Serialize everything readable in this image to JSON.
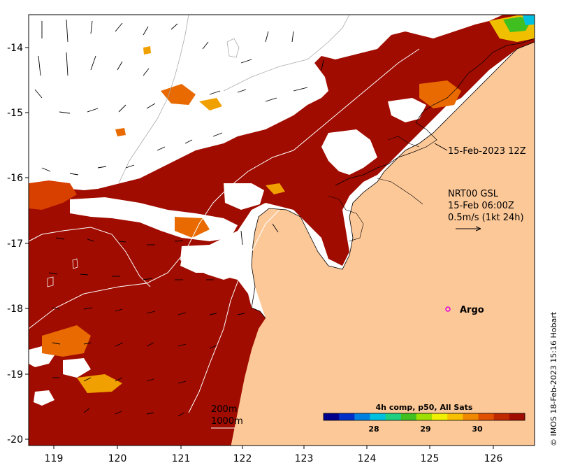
{
  "map": {
    "x_ticks": [
      "119",
      "120",
      "121",
      "122",
      "123",
      "124",
      "125",
      "126"
    ],
    "y_ticks": [
      "-14",
      "-15",
      "-16",
      "-17",
      "-18",
      "-19",
      "-20"
    ],
    "colors": {
      "land": "#fcc898",
      "sst_hot": "#a00c00",
      "sst_warm": "#c83000",
      "sst_mid": "#e86a00",
      "sst_cool": "#f0a000",
      "cloud": "#ffffff"
    }
  },
  "annotations": {
    "date_label": "15-Feb-2023 12Z",
    "wind_title": "NRT00 GSL",
    "wind_time": "15-Feb 06:00Z",
    "wind_scale": "0.5m/s (1kt 24h)",
    "argo_label": "Argo",
    "iso_200": "200m",
    "iso_1000": "1000m"
  },
  "colorbar": {
    "title": "4h comp, p50, All Sats",
    "ticks": [
      "28",
      "29",
      "30"
    ],
    "colors": [
      "#00008c",
      "#0030c8",
      "#0080e0",
      "#00c0e0",
      "#20d080",
      "#40c020",
      "#a0e000",
      "#f0f000",
      "#f8c000",
      "#f08800",
      "#e05000",
      "#c02800",
      "#a00c00"
    ]
  },
  "credit": "© IMOS 18-Feb-2023 15:16 Hobart"
}
